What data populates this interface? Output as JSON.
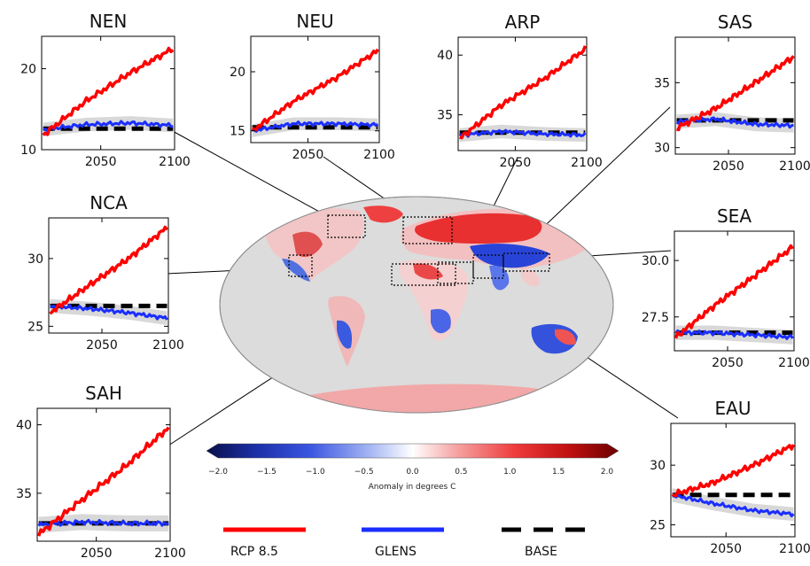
{
  "colors": {
    "rcp": "#ff0000",
    "glens": "#1a2eff",
    "base": "#000000",
    "ensemble": "#c8c8c8",
    "ocean": "#dcdcdc"
  },
  "legend": {
    "rcp": "RCP 8.5",
    "glens": "GLENS",
    "base": "BASE"
  },
  "colorbar": {
    "label": "Anomaly in degrees C",
    "range": [
      -2.0,
      2.0
    ],
    "ticks": [
      "−2.0",
      "−1.5",
      "−1.0",
      "−0.5",
      "0.0",
      "0.5",
      "1.0",
      "1.5",
      "2.0"
    ]
  },
  "chart_data": [
    {
      "type": "line",
      "title": "NEN",
      "x_ticks": [
        "2050",
        "2100"
      ],
      "y_ticks": [
        "10",
        "20"
      ],
      "xlim": [
        2010,
        2100
      ],
      "ylim": [
        10,
        24
      ],
      "series": [
        {
          "name": "RCP 8.5",
          "x": [
            2011,
            2040,
            2070,
            2099
          ],
          "y": [
            11.8,
            16.0,
            19.5,
            22.5
          ]
        },
        {
          "name": "GLENS",
          "x": [
            2011,
            2040,
            2070,
            2099
          ],
          "y": [
            12.5,
            13.1,
            13.3,
            13.0
          ]
        },
        {
          "name": "BASE",
          "x": [
            2011,
            2099
          ],
          "y": [
            12.6,
            12.6
          ]
        }
      ]
    },
    {
      "type": "line",
      "title": "NEU",
      "x_ticks": [
        "2050",
        "2100"
      ],
      "y_ticks": [
        "15",
        "20"
      ],
      "xlim": [
        2010,
        2100
      ],
      "ylim": [
        14,
        23
      ],
      "series": [
        {
          "name": "RCP 8.5",
          "x": [
            2011,
            2040,
            2070,
            2099
          ],
          "y": [
            15.0,
            17.5,
            19.5,
            21.8
          ]
        },
        {
          "name": "GLENS",
          "x": [
            2011,
            2040,
            2070,
            2099
          ],
          "y": [
            15.0,
            15.6,
            15.6,
            15.5
          ]
        },
        {
          "name": "BASE",
          "x": [
            2011,
            2099
          ],
          "y": [
            15.3,
            15.3
          ]
        }
      ]
    },
    {
      "type": "line",
      "title": "ARP",
      "x_ticks": [
        "2050",
        "2100"
      ],
      "y_ticks": [
        "35",
        "40"
      ],
      "xlim": [
        2010,
        2100
      ],
      "ylim": [
        32,
        41.5
      ],
      "series": [
        {
          "name": "RCP 8.5",
          "x": [
            2011,
            2040,
            2070,
            2099
          ],
          "y": [
            33.0,
            35.8,
            38.0,
            40.5
          ]
        },
        {
          "name": "GLENS",
          "x": [
            2011,
            2040,
            2070,
            2099
          ],
          "y": [
            33.3,
            33.6,
            33.4,
            33.3
          ]
        },
        {
          "name": "BASE",
          "x": [
            2011,
            2099
          ],
          "y": [
            33.5,
            33.5
          ]
        }
      ]
    },
    {
      "type": "line",
      "title": "SAS",
      "x_ticks": [
        "2050",
        "2100"
      ],
      "y_ticks": [
        "30",
        "35"
      ],
      "xlim": [
        2010,
        2100
      ],
      "ylim": [
        29.5,
        38.5
      ],
      "series": [
        {
          "name": "RCP 8.5",
          "x": [
            2011,
            2040,
            2070,
            2099
          ],
          "y": [
            31.5,
            33.0,
            35.0,
            37.0
          ]
        },
        {
          "name": "GLENS",
          "x": [
            2011,
            2040,
            2070,
            2099
          ],
          "y": [
            32.0,
            32.2,
            31.8,
            31.7
          ]
        },
        {
          "name": "BASE",
          "x": [
            2011,
            2099
          ],
          "y": [
            32.1,
            32.1
          ]
        }
      ]
    },
    {
      "type": "line",
      "title": "NCA",
      "x_ticks": [
        "2050",
        "2100"
      ],
      "y_ticks": [
        "25",
        "30"
      ],
      "xlim": [
        2010,
        2100
      ],
      "ylim": [
        24.5,
        33
      ],
      "series": [
        {
          "name": "RCP 8.5",
          "x": [
            2011,
            2040,
            2070,
            2099
          ],
          "y": [
            26.0,
            28.0,
            30.0,
            32.3
          ]
        },
        {
          "name": "GLENS",
          "x": [
            2011,
            2040,
            2070,
            2099
          ],
          "y": [
            26.5,
            26.3,
            26.0,
            25.6
          ]
        },
        {
          "name": "BASE",
          "x": [
            2011,
            2099
          ],
          "y": [
            26.5,
            26.5
          ]
        }
      ]
    },
    {
      "type": "line",
      "title": "SEA",
      "x_ticks": [
        "2050",
        "2100"
      ],
      "y_ticks": [
        "27.5",
        "30.0"
      ],
      "xlim": [
        2010,
        2100
      ],
      "ylim": [
        26.0,
        31.3
      ],
      "series": [
        {
          "name": "RCP 8.5",
          "x": [
            2011,
            2040,
            2070,
            2099
          ],
          "y": [
            26.6,
            28.0,
            29.3,
            30.6
          ]
        },
        {
          "name": "GLENS",
          "x": [
            2011,
            2040,
            2070,
            2099
          ],
          "y": [
            26.8,
            26.8,
            26.7,
            26.6
          ]
        },
        {
          "name": "BASE",
          "x": [
            2011,
            2099
          ],
          "y": [
            26.8,
            26.8
          ]
        }
      ]
    },
    {
      "type": "line",
      "title": "SAH",
      "x_ticks": [
        "2050",
        "2100"
      ],
      "y_ticks": [
        "35",
        "40"
      ],
      "xlim": [
        2010,
        2100
      ],
      "ylim": [
        31.5,
        41.2
      ],
      "series": [
        {
          "name": "RCP 8.5",
          "x": [
            2011,
            2040,
            2070,
            2099
          ],
          "y": [
            32.0,
            34.5,
            37.0,
            39.8
          ]
        },
        {
          "name": "GLENS",
          "x": [
            2011,
            2040,
            2070,
            2099
          ],
          "y": [
            32.7,
            32.9,
            32.8,
            32.8
          ]
        },
        {
          "name": "BASE",
          "x": [
            2011,
            2099
          ],
          "y": [
            32.8,
            32.8
          ]
        }
      ]
    },
    {
      "type": "line",
      "title": "EAU",
      "x_ticks": [
        "2050",
        "2100"
      ],
      "y_ticks": [
        "25",
        "30"
      ],
      "xlim": [
        2010,
        2100
      ],
      "ylim": [
        24,
        33.5
      ],
      "series": [
        {
          "name": "RCP 8.5",
          "x": [
            2011,
            2040,
            2070,
            2099
          ],
          "y": [
            27.5,
            28.5,
            30.0,
            31.7
          ]
        },
        {
          "name": "GLENS",
          "x": [
            2011,
            2040,
            2070,
            2099
          ],
          "y": [
            27.5,
            26.8,
            26.2,
            25.9
          ]
        },
        {
          "name": "BASE",
          "x": [
            2011,
            2099
          ],
          "y": [
            27.5,
            27.5
          ]
        }
      ]
    }
  ]
}
